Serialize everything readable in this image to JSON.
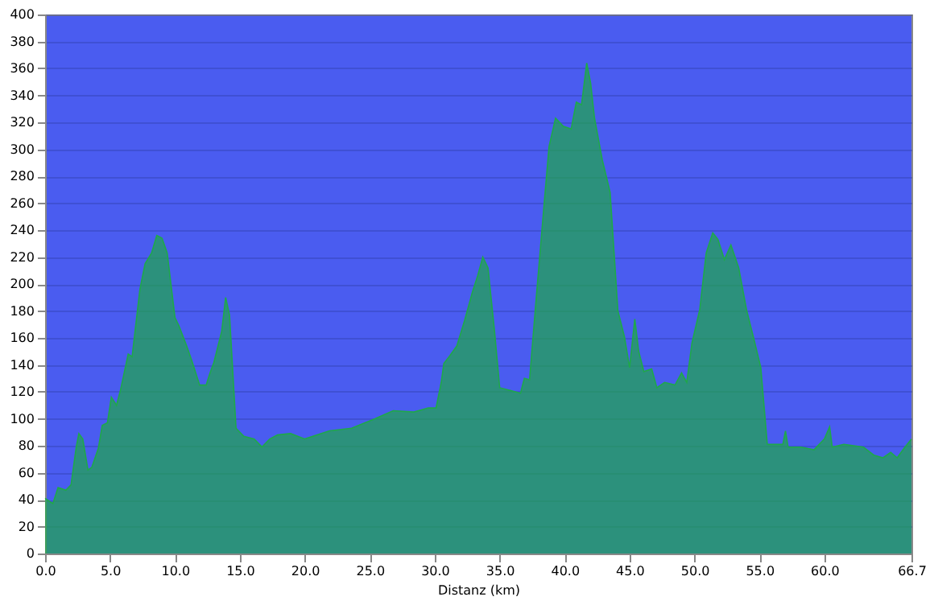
{
  "chart_data": {
    "type": "area",
    "xlabel": "Distanz  (km)",
    "x": [
      0,
      0.6,
      1.0,
      1.6,
      2.0,
      2.4,
      2.6,
      2.9,
      3.3,
      3.6,
      4.1,
      4.4,
      4.8,
      5.1,
      5.5,
      5.8,
      6.4,
      6.7,
      7.3,
      7.7,
      8.2,
      8.6,
      9.0,
      9.4,
      10.0,
      10.3,
      10.9,
      11.3,
      11.9,
      12.4,
      12.7,
      13.0,
      13.6,
      13.9,
      14.2,
      14.7,
      15.3,
      16.1,
      16.7,
      17.3,
      17.9,
      18.9,
      20.0,
      21.9,
      23.6,
      25.4,
      26.8,
      28.4,
      29.5,
      30.1,
      30.5,
      30.7,
      31.1,
      31.7,
      32.3,
      32.9,
      33.3,
      33.7,
      34.1,
      34.6,
      35.0,
      35.8,
      36.6,
      36.9,
      37.3,
      37.8,
      38.4,
      38.8,
      39.3,
      39.9,
      40.5,
      40.9,
      41.3,
      41.7,
      42.0,
      42.3,
      42.9,
      43.5,
      44.1,
      44.6,
      45.0,
      45.4,
      45.7,
      46.1,
      46.7,
      47.1,
      47.7,
      48.5,
      49.0,
      49.4,
      49.8,
      50.4,
      50.9,
      51.4,
      51.8,
      52.3,
      52.8,
      53.4,
      54.0,
      54.6,
      55.1,
      55.6,
      56.8,
      57.0,
      57.2,
      58.2,
      59.2,
      60.0,
      60.4,
      60.6,
      61.5,
      63.0,
      63.8,
      64.5,
      65.1,
      65.6,
      66.2,
      66.7
    ],
    "series": [
      {
        "color": "#1fa84a",
        "values": [
          41,
          37,
          49,
          47,
          51,
          79,
          89,
          85,
          62,
          64,
          78,
          95,
          97,
          116,
          110,
          121,
          148,
          146,
          196,
          215,
          223,
          236,
          234,
          223,
          175,
          169,
          154,
          143,
          125,
          125,
          134,
          142,
          165,
          190,
          177,
          93,
          87,
          85,
          79,
          85,
          88,
          89,
          85,
          91,
          93,
          100,
          106,
          105,
          108,
          108,
          127,
          141,
          146,
          154,
          173,
          194,
          206,
          220,
          212,
          165,
          123,
          121,
          119,
          130,
          129,
          188,
          257,
          302,
          323,
          317,
          315,
          335,
          333,
          364,
          349,
          323,
          292,
          268,
          180,
          161,
          138,
          174,
          150,
          135,
          137,
          123,
          127,
          125,
          134,
          127,
          156,
          181,
          223,
          238,
          233,
          218,
          229,
          212,
          181,
          158,
          138,
          81,
          81,
          91,
          79,
          79,
          77,
          85,
          94,
          79,
          81,
          79,
          73,
          71,
          75,
          71,
          79,
          85
        ]
      }
    ],
    "xlim": [
      0,
      66.7
    ],
    "ylim": [
      0,
      400
    ],
    "xticks": [
      {
        "value": 0,
        "label": "0.0"
      },
      {
        "value": 5,
        "label": "5.0"
      },
      {
        "value": 10,
        "label": "10.0"
      },
      {
        "value": 15,
        "label": "15.0"
      },
      {
        "value": 20,
        "label": "20.0"
      },
      {
        "value": 25,
        "label": "25.0"
      },
      {
        "value": 30,
        "label": "30.0"
      },
      {
        "value": 35,
        "label": "35.0"
      },
      {
        "value": 40,
        "label": "40.0"
      },
      {
        "value": 45,
        "label": "45.0"
      },
      {
        "value": 50,
        "label": "50.0"
      },
      {
        "value": 55,
        "label": "55.0"
      },
      {
        "value": 60,
        "label": "60.0"
      },
      {
        "value": 66.7,
        "label": "66.7"
      }
    ],
    "yticks": [
      0,
      20,
      40,
      60,
      80,
      100,
      120,
      140,
      160,
      180,
      200,
      220,
      240,
      260,
      280,
      300,
      320,
      340,
      360,
      380,
      400
    ],
    "grid": "y"
  }
}
